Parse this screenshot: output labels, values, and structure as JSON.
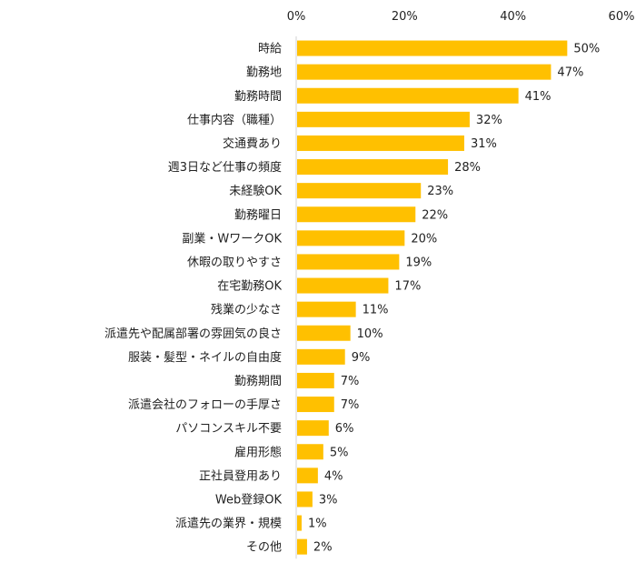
{
  "chart_data": {
    "type": "bar",
    "orientation": "horizontal",
    "title": "",
    "xlabel": "",
    "ylabel": "",
    "xlim": [
      0,
      60
    ],
    "ticks": [
      0,
      20,
      40,
      60
    ],
    "tick_suffix": "%",
    "axis_position": "top",
    "grid": false,
    "bar_color": "#FFC000",
    "categories": [
      "時給",
      "勤務地",
      "勤務時間",
      "仕事内容（職種）",
      "交通費あり",
      "週3日など仕事の頻度",
      "未経験OK",
      "勤務曜日",
      "副業・WワークOK",
      "休暇の取りやすさ",
      "在宅勤務OK",
      "残業の少なさ",
      "派遣先や配属部署の雰囲気の良さ",
      "服装・髪型・ネイルの自由度",
      "勤務期間",
      "派遣会社のフォローの手厚さ",
      "パソコンスキル不要",
      "雇用形態",
      "正社員登用あり",
      "Web登録OK",
      "派遣先の業界・規模",
      "その他"
    ],
    "values": [
      50,
      47,
      41,
      32,
      31,
      28,
      23,
      22,
      20,
      19,
      17,
      11,
      10,
      9,
      7,
      7,
      6,
      5,
      4,
      3,
      1,
      2
    ],
    "value_suffix": "%"
  }
}
